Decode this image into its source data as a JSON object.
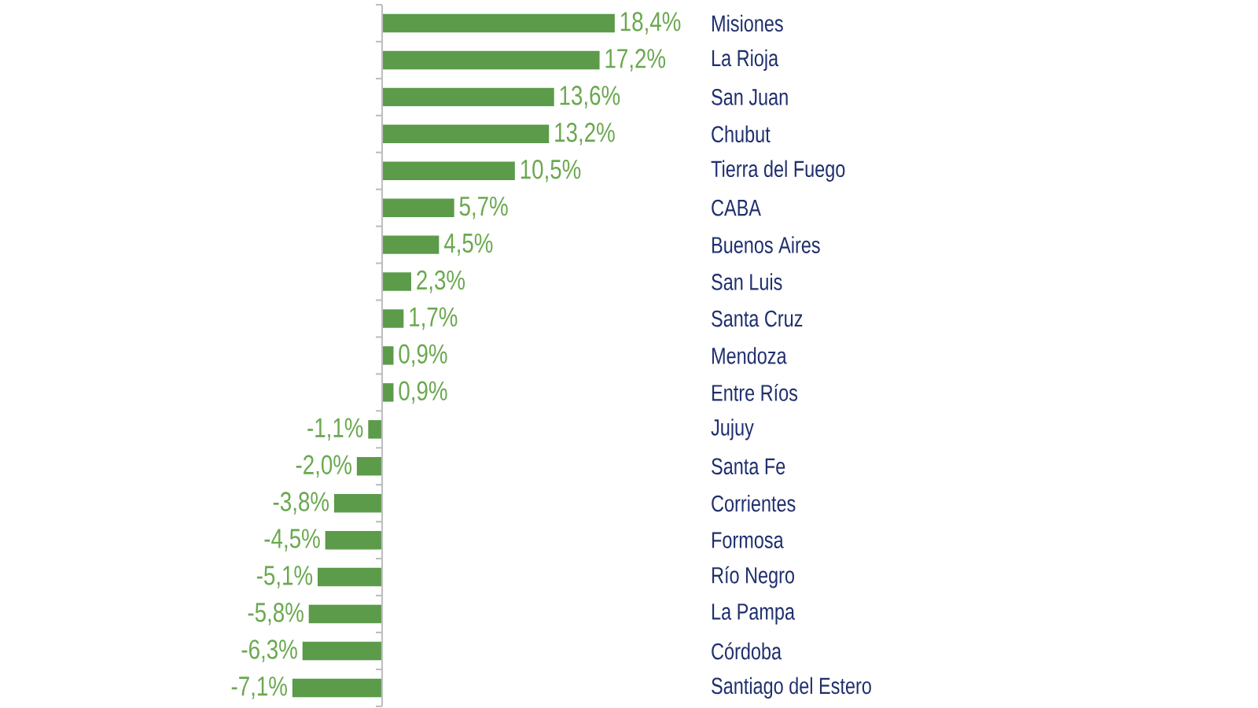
{
  "chart_data": {
    "type": "bar",
    "orientation": "horizontal",
    "categories": [
      "Misiones",
      "La Rioja",
      "San Juan",
      "Chubut",
      "Tierra del Fuego",
      "CABA",
      "Buenos Aires",
      "San Luis",
      "Santa Cruz",
      "Mendoza",
      "Entre Ríos",
      "Jujuy",
      "Santa Fe",
      "Corrientes",
      "Formosa",
      "Río Negro",
      "La Pampa",
      "Córdoba",
      "Santiago del Estero"
    ],
    "values": [
      18.4,
      17.2,
      13.6,
      13.2,
      10.5,
      5.7,
      4.5,
      2.3,
      1.7,
      0.9,
      0.9,
      -1.1,
      -2.0,
      -3.8,
      -4.5,
      -5.1,
      -5.8,
      -6.3,
      -7.1
    ],
    "value_labels": [
      "18,4%",
      "17,2%",
      "13,6%",
      "13,2%",
      "10,5%",
      "5,7%",
      "4,5%",
      "2,3%",
      "1,7%",
      "0,9%",
      "0,9%",
      "-1,1%",
      "-2,0%",
      "-3,8%",
      "-4,5%",
      "-5,1%",
      "-5,8%",
      "-6,3%",
      "-7,1%"
    ],
    "color": "#5b9b4a"
  }
}
